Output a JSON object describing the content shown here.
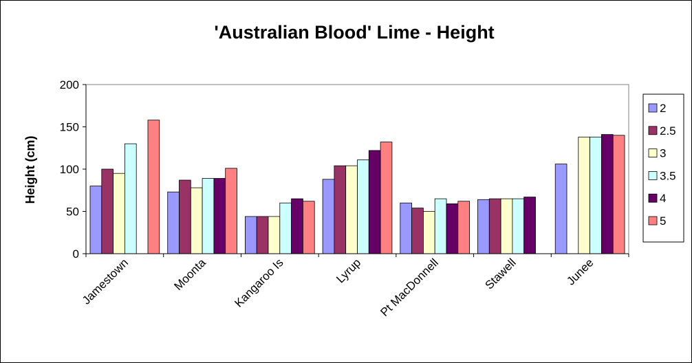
{
  "chart_data": {
    "type": "bar",
    "title": "'Australian Blood' Lime - Height",
    "xlabel": "",
    "ylabel": "Height (cm)",
    "ylim": [
      0,
      200
    ],
    "yticks": [
      0,
      50,
      100,
      150,
      200
    ],
    "grid": false,
    "legend_position": "right",
    "categories": [
      "Jamestown",
      "Moonta",
      "Kangaroo Is",
      "Lyrup",
      "Pt MacDonnell",
      "Stawell",
      "Junee"
    ],
    "series": [
      {
        "name": "2",
        "color": "#9999ff",
        "values": [
          80,
          73,
          44,
          88,
          60,
          64,
          106
        ]
      },
      {
        "name": "2.5",
        "color": "#993366",
        "values": [
          100,
          87,
          44,
          104,
          54,
          65,
          null
        ]
      },
      {
        "name": "3",
        "color": "#ffffcc",
        "values": [
          95,
          78,
          44,
          104,
          50,
          65,
          138
        ]
      },
      {
        "name": "3.5",
        "color": "#ccffff",
        "values": [
          130,
          89,
          60,
          111,
          65,
          65,
          138
        ]
      },
      {
        "name": "4",
        "color": "#660066",
        "values": [
          null,
          89,
          65,
          122,
          59,
          67,
          141
        ]
      },
      {
        "name": "5",
        "color": "#ff8080",
        "values": [
          158,
          101,
          62,
          132,
          62,
          null,
          140
        ]
      }
    ]
  }
}
